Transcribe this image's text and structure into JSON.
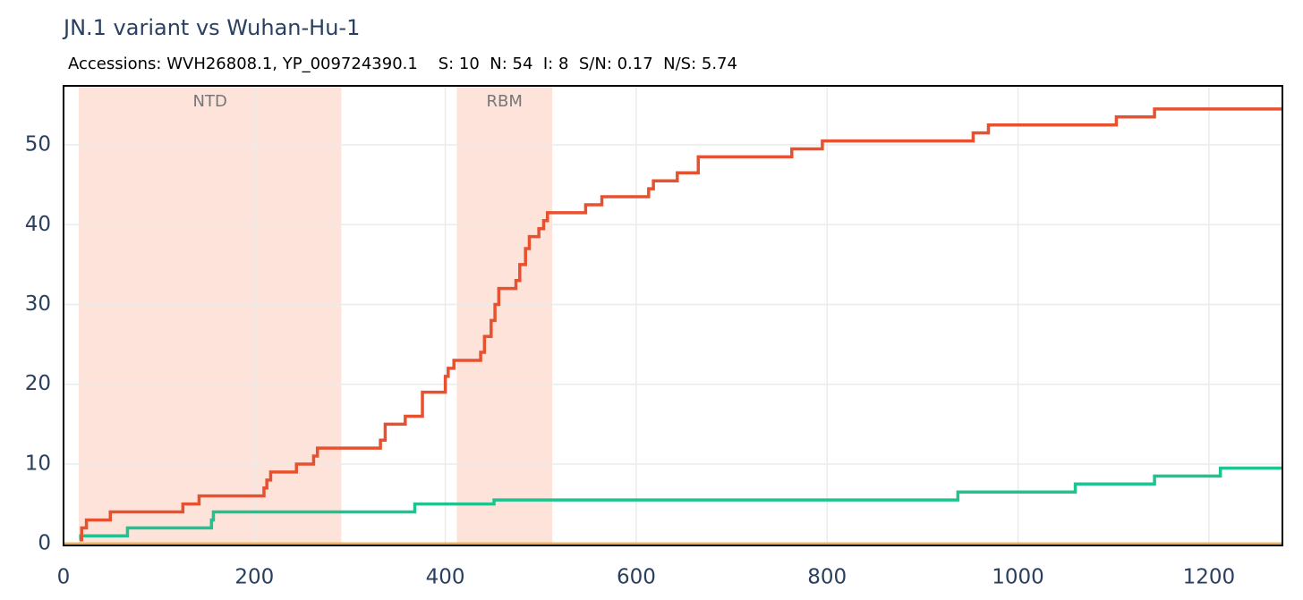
{
  "chart_data": {
    "type": "line",
    "step": true,
    "title": "JN.1 variant vs Wuhan-Hu-1",
    "subtitle": "Accessions: WVH26808.1, YP_009724390.1    S: 10  N: 54  I: 8  S/N: 0.17  N/S: 5.74",
    "xlim": [
      0,
      1277
    ],
    "ylim": [
      -0.2,
      57.4
    ],
    "xticks": [
      0,
      200,
      400,
      600,
      800,
      1000,
      1200
    ],
    "yticks": [
      0,
      10,
      20,
      30,
      40,
      50
    ],
    "grid": true,
    "regions": [
      {
        "label": "NTD",
        "x": [
          16,
          291
        ],
        "color": "#fde3d9"
      },
      {
        "label": "RBM",
        "x": [
          412,
          512
        ],
        "color": "#fde3d9"
      }
    ],
    "series": [
      {
        "color": "#e8512f",
        "x": [
          17,
          19,
          24,
          49,
          125,
          142,
          210,
          213,
          217,
          244,
          262,
          266,
          332,
          337,
          358,
          376,
          400,
          403,
          409,
          437,
          441,
          448,
          452,
          456,
          474,
          478,
          484,
          488,
          498,
          503,
          507,
          547,
          564,
          613,
          618,
          643,
          665,
          763,
          795,
          953,
          969,
          1103,
          1143,
          1277
        ],
        "values": [
          0.5,
          2,
          3,
          4,
          5,
          6,
          7,
          8,
          9,
          10,
          11,
          12,
          13,
          15,
          16,
          19,
          21,
          22,
          23,
          24,
          26,
          28,
          30,
          32,
          33,
          35,
          37,
          38.5,
          39.5,
          40.5,
          41.5,
          42.5,
          43.5,
          44.5,
          45.5,
          46.5,
          48.5,
          49.5,
          50.5,
          51.5,
          52.5,
          53.5,
          54.5,
          54.5
        ]
      },
      {
        "color": "#1fc38f",
        "x": [
          17,
          18,
          67,
          155,
          157,
          368,
          451,
          937,
          1060,
          1143,
          1212,
          1277
        ],
        "values": [
          0.5,
          1,
          2,
          3,
          4,
          5,
          5.5,
          6.5,
          7.5,
          8.5,
          9.5,
          9.5
        ]
      },
      {
        "color": "#e8b060",
        "x": [
          0,
          1277
        ],
        "values": [
          0,
          0
        ]
      }
    ]
  }
}
